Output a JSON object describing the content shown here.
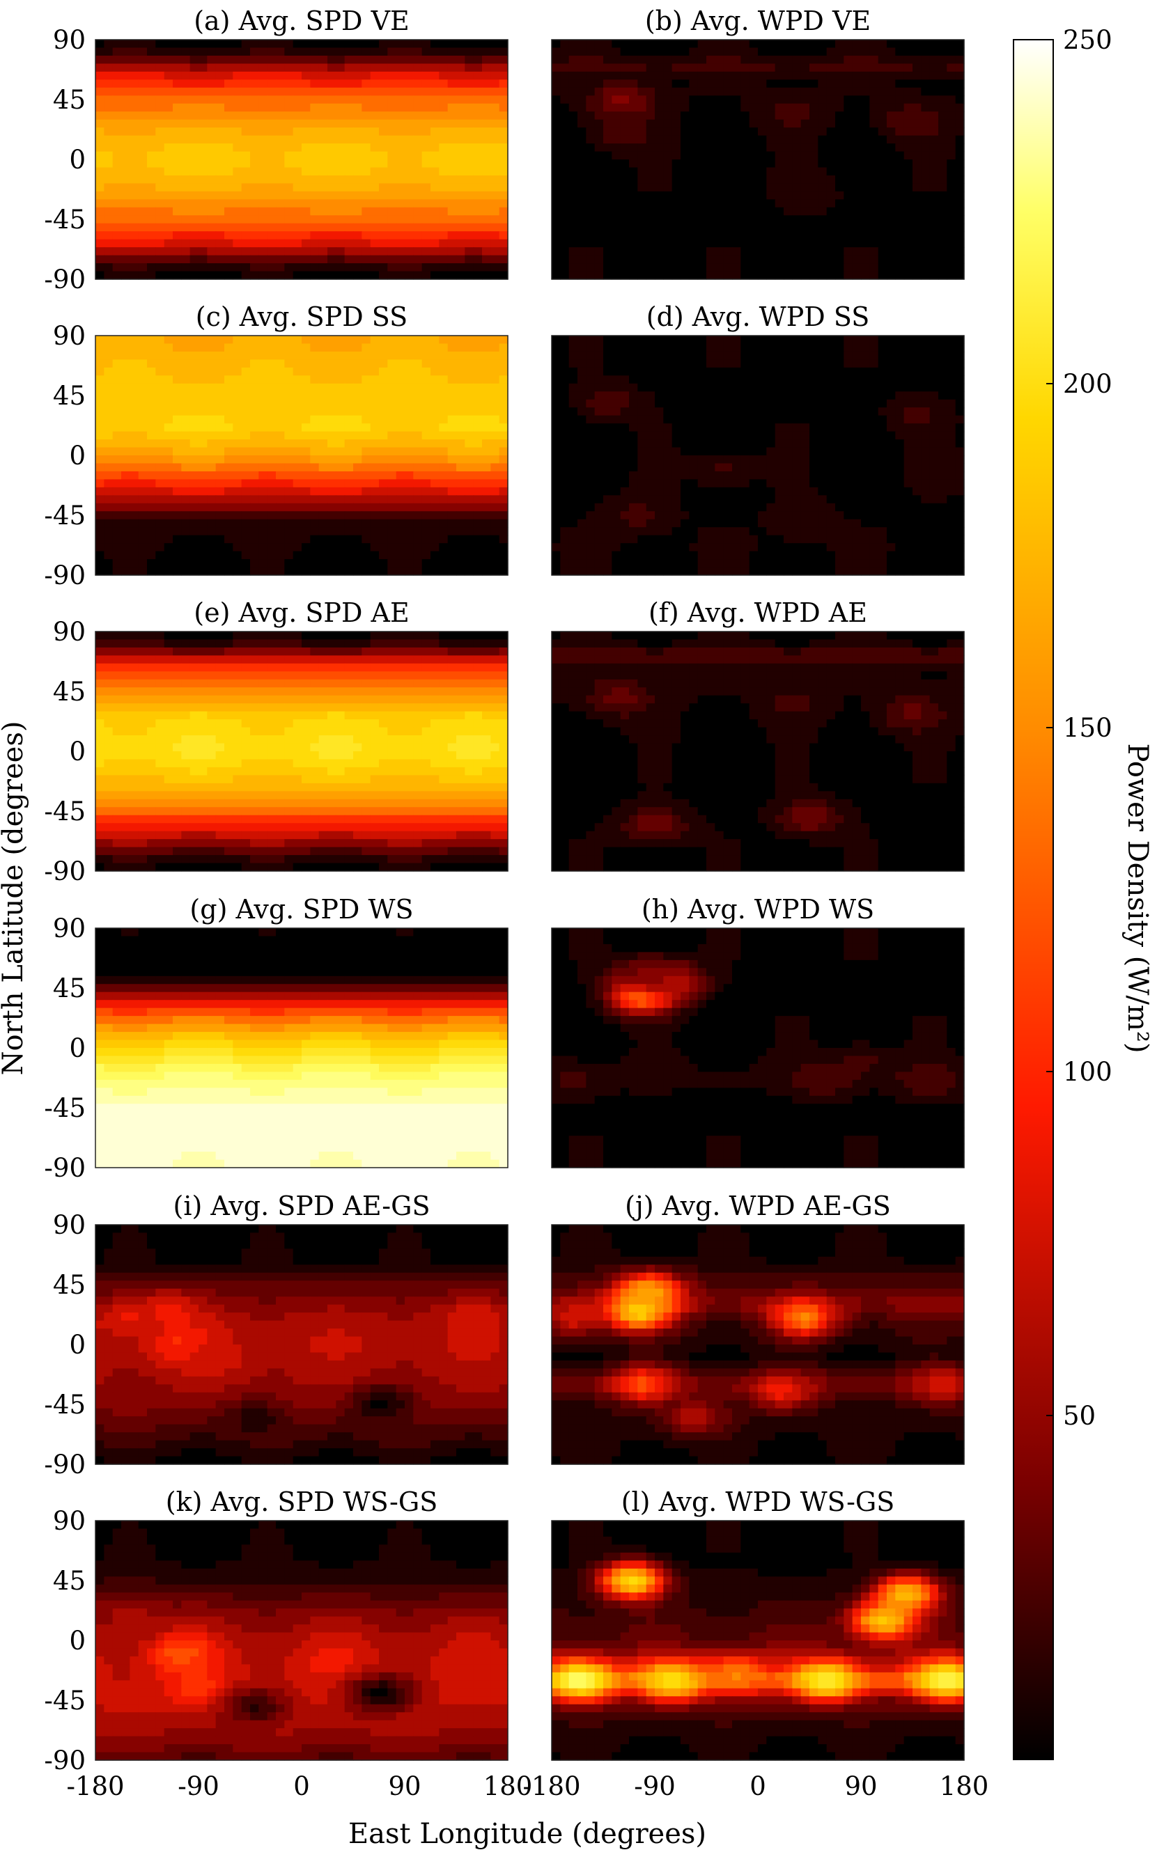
{
  "chart_data": {
    "type": "heatmap",
    "layout": "6 rows x 2 columns of filled-contour world maps with a shared vertical colorbar",
    "xlabel": "East Longitude (degrees)",
    "ylabel": "North Latitude (degrees)",
    "x_ticks": [
      -180,
      -90,
      0,
      90,
      180
    ],
    "y_ticks": [
      90,
      45,
      0,
      -45,
      -90
    ],
    "xlim": [
      -180,
      180
    ],
    "ylim": [
      -90,
      90
    ],
    "colorbar": {
      "label": "Power Density (W/m²)",
      "ticks": [
        50,
        100,
        150,
        200,
        250
      ],
      "range": [
        0,
        250
      ],
      "colormap": "hot",
      "colors": [
        "#000000",
        "#7a0000",
        "#ff1a00",
        "#ff8c00",
        "#ffd700",
        "#ffff66",
        "#ffffff"
      ]
    },
    "panels": [
      {
        "title": "(a) Avg. SPD VE",
        "kind": "SPD",
        "lat_profile": [
          [
            90,
            0
          ],
          [
            80,
            15
          ],
          [
            65,
            70
          ],
          [
            45,
            110
          ],
          [
            25,
            140
          ],
          [
            0,
            160
          ],
          [
            -25,
            140
          ],
          [
            -45,
            110
          ],
          [
            -65,
            70
          ],
          [
            -80,
            15
          ],
          [
            -90,
            0
          ]
        ],
        "cells": []
      },
      {
        "title": "(b) Avg. WPD VE",
        "kind": "WPD",
        "lat_profile": [
          [
            90,
            2
          ],
          [
            80,
            6
          ],
          [
            70,
            22
          ],
          [
            60,
            6
          ],
          [
            0,
            2
          ],
          [
            -90,
            2
          ]
        ],
        "cells": [
          {
            "lon": -118,
            "lat": 43,
            "value": 45
          },
          {
            "lon": -120,
            "lat": 20,
            "value": 25
          },
          {
            "lon": 30,
            "lat": 35,
            "value": 22
          },
          {
            "lon": 135,
            "lat": 28,
            "value": 28
          },
          {
            "lon": 45,
            "lat": -25,
            "value": 15
          }
        ]
      },
      {
        "title": "(c) Avg. SPD SS",
        "kind": "SPD",
        "lat_profile": [
          [
            90,
            140
          ],
          [
            70,
            150
          ],
          [
            40,
            160
          ],
          [
            20,
            165
          ],
          [
            0,
            135
          ],
          [
            -20,
            90
          ],
          [
            -40,
            40
          ],
          [
            -50,
            10
          ],
          [
            -90,
            0
          ]
        ],
        "cells": []
      },
      {
        "title": "(d) Avg. WPD SS",
        "kind": "WPD",
        "lat_profile": [
          [
            90,
            2
          ],
          [
            0,
            2
          ],
          [
            -70,
            5
          ],
          [
            -90,
            2
          ]
        ],
        "cells": [
          {
            "lon": -130,
            "lat": 40,
            "value": 25
          },
          {
            "lon": -105,
            "lat": -45,
            "value": 22
          },
          {
            "lon": -30,
            "lat": -10,
            "value": 18
          },
          {
            "lon": 140,
            "lat": 30,
            "value": 20
          },
          {
            "lon": 170,
            "lat": -10,
            "value": 15
          },
          {
            "lon": 40,
            "lat": -50,
            "value": 15
          }
        ]
      },
      {
        "title": "(e) Avg. SPD AE",
        "kind": "SPD",
        "lat_profile": [
          [
            90,
            0
          ],
          [
            80,
            20
          ],
          [
            65,
            85
          ],
          [
            45,
            130
          ],
          [
            25,
            165
          ],
          [
            0,
            175
          ],
          [
            -25,
            150
          ],
          [
            -45,
            110
          ],
          [
            -65,
            60
          ],
          [
            -80,
            15
          ],
          [
            -90,
            0
          ]
        ],
        "cells": []
      },
      {
        "title": "(f) Avg. WPD AE",
        "kind": "WPD",
        "lat_profile": [
          [
            90,
            2
          ],
          [
            82,
            8
          ],
          [
            72,
            28
          ],
          [
            62,
            8
          ],
          [
            0,
            2
          ],
          [
            -90,
            2
          ]
        ],
        "cells": [
          {
            "lon": -120,
            "lat": 40,
            "value": 35
          },
          {
            "lon": -90,
            "lat": -55,
            "value": 40
          },
          {
            "lon": 45,
            "lat": -50,
            "value": 40
          },
          {
            "lon": 135,
            "lat": 28,
            "value": 32
          },
          {
            "lon": 30,
            "lat": 35,
            "value": 20
          }
        ]
      },
      {
        "title": "(g) Avg. SPD WS",
        "kind": "SPD",
        "lat_profile": [
          [
            90,
            0
          ],
          [
            55,
            0
          ],
          [
            45,
            30
          ],
          [
            30,
            90
          ],
          [
            10,
            150
          ],
          [
            0,
            170
          ],
          [
            -20,
            210
          ],
          [
            -45,
            235
          ],
          [
            -70,
            240
          ],
          [
            -90,
            235
          ]
        ],
        "cells": []
      },
      {
        "title": "(h) Avg. WPD WS",
        "kind": "WPD",
        "lat_profile": [
          [
            90,
            2
          ],
          [
            0,
            2
          ],
          [
            -25,
            12
          ],
          [
            -35,
            2
          ],
          [
            -90,
            2
          ]
        ],
        "cells": [
          {
            "lon": -100,
            "lat": 40,
            "value": 140
          },
          {
            "lon": -75,
            "lat": 50,
            "value": 70
          },
          {
            "lon": -100,
            "lat": 55,
            "value": 40
          },
          {
            "lon": 90,
            "lat": -10,
            "value": 20
          },
          {
            "lon": -160,
            "lat": -25,
            "value": 20
          },
          {
            "lon": 60,
            "lat": -25,
            "value": 25
          },
          {
            "lon": 150,
            "lat": -25,
            "value": 25
          }
        ]
      },
      {
        "title": "(i) Avg. SPD AE-GS",
        "kind": "SPD",
        "lat_profile": [
          [
            90,
            0
          ],
          [
            60,
            5
          ],
          [
            45,
            30
          ],
          [
            20,
            55
          ],
          [
            0,
            60
          ],
          [
            -20,
            55
          ],
          [
            -45,
            45
          ],
          [
            -65,
            25
          ],
          [
            -85,
            5
          ],
          [
            -90,
            0
          ]
        ],
        "cells": [
          {
            "lon": -105,
            "lat": 0,
            "value": 90
          },
          {
            "lon": -115,
            "lat": 25,
            "value": 80
          },
          {
            "lon": -75,
            "lat": -10,
            "value": 70
          },
          {
            "lon": 150,
            "lat": 20,
            "value": 70
          },
          {
            "lon": 70,
            "lat": -45,
            "value": 2
          },
          {
            "lon": -40,
            "lat": -55,
            "value": 10
          },
          {
            "lon": -150,
            "lat": 20,
            "value": 75
          }
        ]
      },
      {
        "title": "(j) Avg. WPD AE-GS",
        "kind": "WPD",
        "lat_profile": [
          [
            90,
            2
          ],
          [
            65,
            5
          ],
          [
            45,
            25
          ],
          [
            30,
            45
          ],
          [
            15,
            20
          ],
          [
            -10,
            5
          ],
          [
            -30,
            40
          ],
          [
            -45,
            15
          ],
          [
            -90,
            2
          ]
        ],
        "cells": [
          {
            "lon": -105,
            "lat": 25,
            "value": 170
          },
          {
            "lon": -95,
            "lat": 40,
            "value": 140
          },
          {
            "lon": 40,
            "lat": 20,
            "value": 120
          },
          {
            "lon": -100,
            "lat": -30,
            "value": 100
          },
          {
            "lon": 20,
            "lat": -35,
            "value": 80
          },
          {
            "lon": -160,
            "lat": 20,
            "value": 70
          },
          {
            "lon": 160,
            "lat": -30,
            "value": 70
          },
          {
            "lon": -55,
            "lat": -55,
            "value": 60
          }
        ]
      },
      {
        "title": "(k) Avg. SPD WS-GS",
        "kind": "SPD",
        "lat_profile": [
          [
            90,
            0
          ],
          [
            60,
            5
          ],
          [
            40,
            20
          ],
          [
            20,
            45
          ],
          [
            0,
            60
          ],
          [
            -20,
            65
          ],
          [
            -45,
            65
          ],
          [
            -65,
            55
          ],
          [
            -80,
            40
          ],
          [
            -90,
            30
          ]
        ],
        "cells": [
          {
            "lon": -105,
            "lat": -10,
            "value": 105
          },
          {
            "lon": -90,
            "lat": -35,
            "value": 95
          },
          {
            "lon": 30,
            "lat": -15,
            "value": 80
          },
          {
            "lon": 70,
            "lat": -40,
            "value": 2
          },
          {
            "lon": -40,
            "lat": -50,
            "value": 15
          },
          {
            "lon": -150,
            "lat": 20,
            "value": 55
          }
        ]
      },
      {
        "title": "(l) Avg. WPD WS-GS",
        "kind": "WPD",
        "lat_profile": [
          [
            90,
            2
          ],
          [
            60,
            2
          ],
          [
            40,
            10
          ],
          [
            0,
            30
          ],
          [
            -20,
            60
          ],
          [
            -30,
            110
          ],
          [
            -42,
            40
          ],
          [
            -60,
            15
          ],
          [
            -90,
            2
          ]
        ],
        "cells": [
          {
            "lon": -155,
            "lat": -30,
            "value": 210
          },
          {
            "lon": -75,
            "lat": -30,
            "value": 180
          },
          {
            "lon": 60,
            "lat": -30,
            "value": 190
          },
          {
            "lon": 165,
            "lat": -30,
            "value": 200
          },
          {
            "lon": -110,
            "lat": 45,
            "value": 170
          },
          {
            "lon": 110,
            "lat": 15,
            "value": 160
          },
          {
            "lon": 130,
            "lat": 35,
            "value": 150
          },
          {
            "lon": -20,
            "lat": -25,
            "value": 120
          }
        ]
      }
    ]
  }
}
